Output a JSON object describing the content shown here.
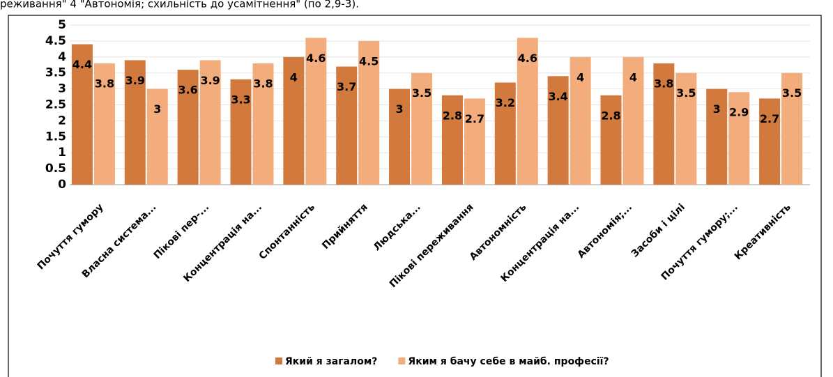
{
  "caption": "реживання\" 4 \"Автономія; схильність до усамітнення\" (по 2,9-3).",
  "chart_data": {
    "type": "bar",
    "categories": [
      "Почуття гумору",
      "Власна система...",
      "Пікові пер-...",
      "Концентрація на...",
      "Спонтанність",
      "Прийняття",
      "Людська...",
      "Пікові переживання",
      "Автономність",
      "Концентрація на...",
      "Автономія;...",
      "Засоби і цілі",
      "Почуття гумору;...",
      "Креативність"
    ],
    "series": [
      {
        "name": "Який я загалом?",
        "color": "#d27a3e",
        "values": [
          4.4,
          3.9,
          3.6,
          3.3,
          4,
          3.7,
          3,
          2.8,
          3.2,
          3.4,
          2.8,
          3.8,
          3,
          2.7
        ]
      },
      {
        "name": "Яким я бачу себе в майб. професії?",
        "color": "#f3ad7c",
        "values": [
          3.8,
          3,
          3.9,
          3.8,
          4.6,
          4.5,
          3.5,
          2.7,
          4.6,
          4,
          4,
          3.5,
          2.9,
          3.5
        ]
      }
    ],
    "ylim": [
      0,
      5
    ],
    "yticks": [
      0,
      0.5,
      1,
      1.5,
      2,
      2.5,
      3,
      3.5,
      4,
      4.5,
      5
    ],
    "grid": true,
    "legend": "bottom"
  }
}
